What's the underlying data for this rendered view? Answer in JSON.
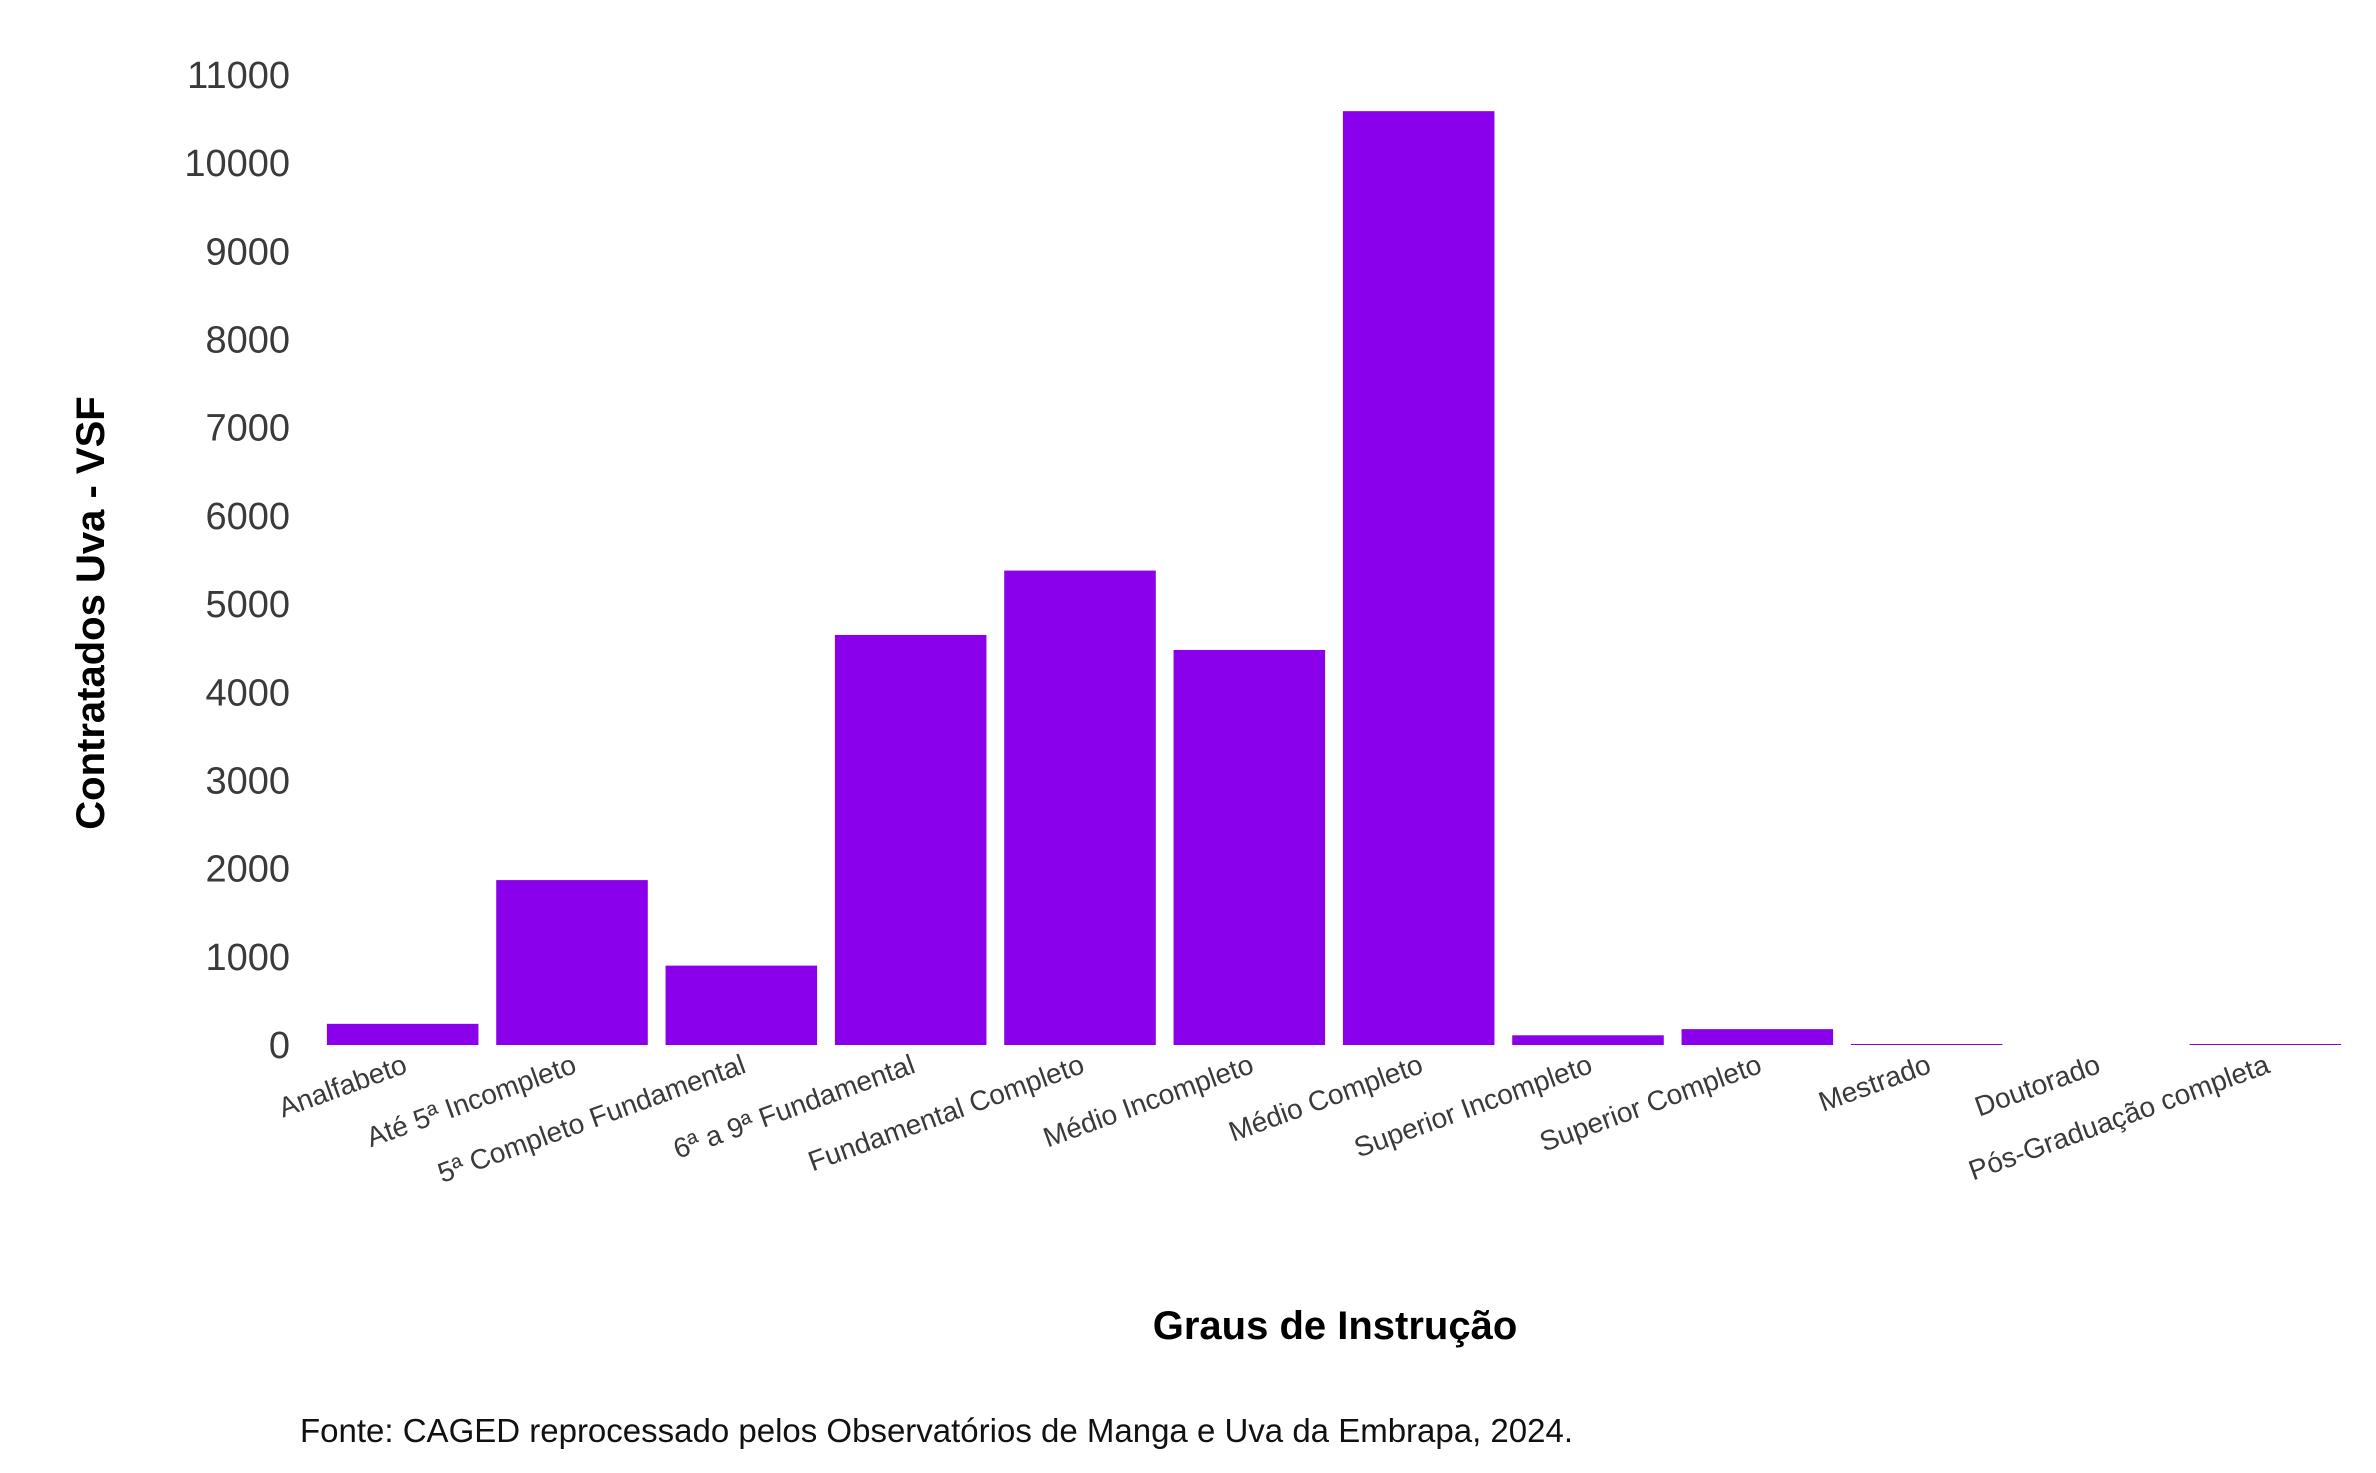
{
  "chart_data": {
    "type": "bar",
    "categories": [
      "Analfabeto",
      "Até 5ª Incompleto",
      "5ª Completo Fundamental",
      "6ª a 9ª Fundamental",
      "Fundamental Completo",
      "Médio Incompleto",
      "Médio Completo",
      "Superior Incompleto",
      "Superior Completo",
      "Mestrado",
      "Doutorado",
      "Pós-Graduação completa"
    ],
    "values": [
      240,
      1870,
      900,
      4650,
      5380,
      4480,
      10590,
      110,
      180,
      5,
      0,
      5
    ],
    "title": "",
    "xlabel": "Graus de Instrução",
    "ylabel": "Contratados Uva - VSF",
    "ylim": [
      0,
      11000
    ],
    "yticks": [
      0,
      1000,
      2000,
      3000,
      4000,
      5000,
      6000,
      7000,
      8000,
      9000,
      10000,
      11000
    ],
    "grid": false,
    "legend": "none",
    "bar_color": "#8b00ea",
    "source": "Fonte: CAGED reprocessado pelos Observatórios de Manga e Uva da Embrapa, 2024."
  }
}
